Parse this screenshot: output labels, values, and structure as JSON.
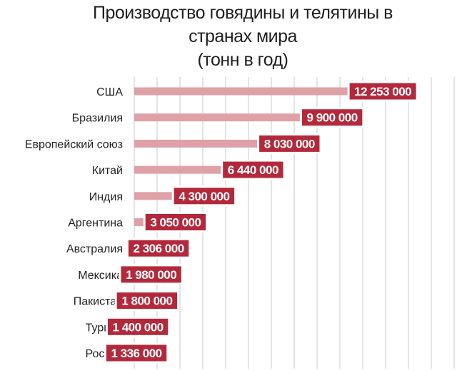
{
  "chart_data": {
    "type": "bar",
    "orientation": "horizontal",
    "title_lines": [
      "Производство говядины и телятины в",
      "странах мира",
      "(тонн в год)"
    ],
    "categories": [
      "США",
      "Бразилия",
      "Европейский союз",
      "Китай",
      "Индия",
      "Аргентина",
      "Австралия",
      "Мексика",
      "Пакистан",
      "Турция",
      "Россия"
    ],
    "values": [
      12253000,
      9900000,
      8030000,
      6440000,
      4300000,
      3050000,
      2306000,
      1980000,
      1800000,
      1400000,
      1336000
    ],
    "value_labels": [
      "12 253 000",
      "9 900 000",
      "8 030 000",
      "6 440 000",
      "4 300 000",
      "3 050 000",
      "2 306 000",
      "1 980 000",
      "1 800 000",
      "1 400 000",
      "1 336 000"
    ],
    "xlim": [
      0,
      14000000
    ],
    "grid": true,
    "colors": {
      "bar": "#dea1a7",
      "label_fill": "#b3293b",
      "label_border": "#ffffff",
      "label_text": "#ffffff",
      "grid": "#c9c9c9",
      "text": "#1f1f1f"
    }
  }
}
